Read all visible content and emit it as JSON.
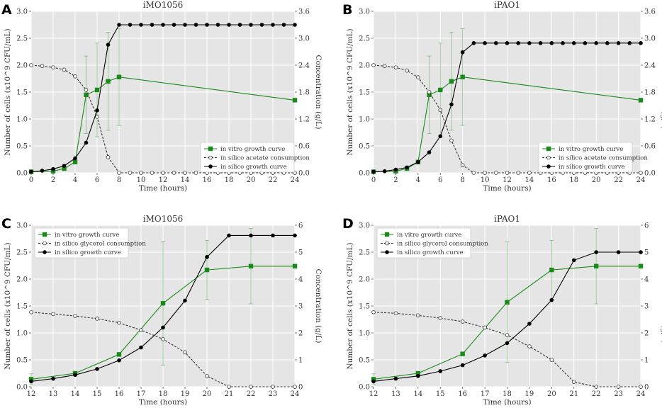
{
  "colors": {
    "vitro": "#1a8a1a",
    "silico_sub": "#333333",
    "silico_growth": "#000000",
    "background": "#e5e5e5"
  },
  "chart_data": [
    {
      "panel": "A",
      "type": "line",
      "title": "iMO1056",
      "xlabel": "Time (hours)",
      "ylabel": "Number of cells (x10^9 CFU/mL)",
      "y2label": "Concentration (g/L)",
      "xlim": [
        0,
        24
      ],
      "xticks": [
        0,
        2,
        4,
        6,
        8,
        10,
        12,
        14,
        16,
        18,
        20,
        22,
        24
      ],
      "ylim": [
        0,
        3.0
      ],
      "yticks": [
        0.0,
        0.5,
        1.0,
        1.5,
        2.0,
        2.5,
        3.0
      ],
      "y2lim": [
        0,
        3.6
      ],
      "y2ticks": [
        0.0,
        0.6,
        1.2,
        1.8,
        2.4,
        3.0,
        3.6
      ],
      "legend_pos": "bottom-right",
      "series": [
        {
          "name": "in vitro growth curve",
          "style": "vitro",
          "x": [
            0,
            2,
            3,
            4,
            5,
            6,
            7,
            8,
            24
          ],
          "y": [
            0.02,
            0.03,
            0.08,
            0.2,
            1.45,
            1.54,
            1.7,
            1.78,
            1.35
          ],
          "err": [
            0,
            0,
            0,
            0,
            0.72,
            0.87,
            0.91,
            0.9,
            0
          ]
        },
        {
          "name": "in silico acetate consumption",
          "style": "sub",
          "axis": "y2",
          "x": [
            0,
            1,
            2,
            3,
            4,
            5,
            6,
            7,
            8,
            9,
            10,
            11,
            12,
            13,
            14,
            15,
            16,
            17,
            18,
            19,
            20,
            21,
            22,
            23,
            24
          ],
          "y": [
            2.4,
            2.38,
            2.35,
            2.3,
            2.15,
            1.85,
            1.25,
            0.35,
            0,
            0,
            0,
            0,
            0,
            0,
            0,
            0,
            0,
            0,
            0,
            0,
            0,
            0,
            0,
            0,
            0
          ]
        },
        {
          "name": "in silico growth curve",
          "style": "growth",
          "x": [
            0,
            1,
            2,
            3,
            4,
            5,
            6,
            7,
            8,
            9,
            10,
            11,
            12,
            13,
            14,
            15,
            16,
            17,
            18,
            19,
            20,
            21,
            22,
            23,
            24
          ],
          "y": [
            0.02,
            0.04,
            0.07,
            0.13,
            0.27,
            0.56,
            1.16,
            2.38,
            2.75,
            2.75,
            2.75,
            2.75,
            2.75,
            2.75,
            2.75,
            2.75,
            2.75,
            2.75,
            2.75,
            2.75,
            2.75,
            2.75,
            2.75,
            2.75,
            2.75
          ]
        }
      ]
    },
    {
      "panel": "B",
      "type": "line",
      "title": "iPAO1",
      "xlabel": "Time (hours)",
      "ylabel": "Number of cells (x10^9 CFU/mL)",
      "y2label": "Concentration (g/L)",
      "xlim": [
        0,
        24
      ],
      "xticks": [
        0,
        2,
        4,
        6,
        8,
        10,
        12,
        14,
        16,
        18,
        20,
        22,
        24
      ],
      "ylim": [
        0,
        3.0
      ],
      "yticks": [
        0.0,
        0.5,
        1.0,
        1.5,
        2.0,
        2.5,
        3.0
      ],
      "y2lim": [
        0,
        3.6
      ],
      "y2ticks": [
        0.0,
        0.6,
        1.2,
        1.8,
        2.4,
        3.0,
        3.6
      ],
      "legend_pos": "bottom-right",
      "series": [
        {
          "name": "in vitro growth curve",
          "style": "vitro",
          "x": [
            0,
            2,
            3,
            4,
            5,
            6,
            7,
            8,
            24
          ],
          "y": [
            0.02,
            0.03,
            0.08,
            0.2,
            1.45,
            1.54,
            1.7,
            1.78,
            1.35
          ],
          "err": [
            0,
            0,
            0,
            0,
            0.72,
            0.87,
            0.91,
            0.9,
            0
          ]
        },
        {
          "name": "in silico acetate consumption",
          "style": "sub",
          "axis": "y2",
          "x": [
            0,
            1,
            2,
            3,
            4,
            5,
            6,
            7,
            8,
            9,
            10,
            11,
            12,
            13,
            14,
            15,
            16,
            17,
            18,
            19,
            20,
            21,
            22,
            23,
            24
          ],
          "y": [
            2.4,
            2.38,
            2.35,
            2.28,
            2.13,
            1.8,
            1.4,
            0.72,
            0.17,
            0,
            0,
            0,
            0,
            0,
            0,
            0,
            0,
            0,
            0,
            0,
            0,
            0,
            0,
            0,
            0
          ]
        },
        {
          "name": "in silico growth curve",
          "style": "growth",
          "x": [
            0,
            1,
            2,
            3,
            4,
            5,
            6,
            7,
            8,
            9,
            10,
            11,
            12,
            13,
            14,
            15,
            16,
            17,
            18,
            19,
            20,
            21,
            22,
            23,
            24
          ],
          "y": [
            0.02,
            0.03,
            0.06,
            0.1,
            0.2,
            0.38,
            0.68,
            1.27,
            2.24,
            2.41,
            2.41,
            2.41,
            2.41,
            2.41,
            2.41,
            2.41,
            2.41,
            2.41,
            2.41,
            2.41,
            2.41,
            2.41,
            2.41,
            2.41,
            2.41
          ]
        }
      ]
    },
    {
      "panel": "C",
      "type": "line",
      "title": "iMO1056",
      "xlabel": "Time (hours)",
      "ylabel": "Number of cells (x10^9 CFU/mL)",
      "y2label": "Concentration (g/L)",
      "xlim": [
        12,
        24
      ],
      "xticks": [
        12,
        13,
        14,
        15,
        16,
        17,
        18,
        19,
        20,
        21,
        22,
        23,
        24
      ],
      "ylim": [
        0,
        3.0
      ],
      "yticks": [
        0.0,
        0.5,
        1.0,
        1.5,
        2.0,
        2.5,
        3.0
      ],
      "y2lim": [
        0,
        6
      ],
      "y2ticks": [
        0,
        1,
        2,
        3,
        4,
        5,
        6
      ],
      "legend_pos": "top-left",
      "series": [
        {
          "name": "in vitro growth curve",
          "style": "vitro",
          "x": [
            12,
            14,
            16,
            18,
            20,
            22,
            24
          ],
          "y": [
            0.14,
            0.25,
            0.6,
            1.55,
            2.17,
            2.24,
            2.24
          ],
          "err": [
            0.1,
            0,
            0,
            1.15,
            0.55,
            0.7,
            0
          ]
        },
        {
          "name": "in silico glycerol consumption",
          "style": "sub",
          "axis": "y2",
          "x": [
            12,
            13,
            14,
            15,
            16,
            17,
            18,
            19,
            20,
            21,
            22,
            23,
            24
          ],
          "y": [
            2.77,
            2.7,
            2.63,
            2.53,
            2.38,
            2.1,
            1.77,
            1.28,
            0.4,
            0,
            0,
            0,
            0
          ]
        },
        {
          "name": "in silico growth curve",
          "style": "growth",
          "x": [
            12,
            13,
            14,
            15,
            16,
            17,
            18,
            19,
            20,
            21,
            22,
            23,
            24
          ],
          "y": [
            0.1,
            0.15,
            0.22,
            0.33,
            0.49,
            0.73,
            1.1,
            1.6,
            2.41,
            2.81,
            2.81,
            2.81,
            2.81
          ]
        }
      ]
    },
    {
      "panel": "D",
      "type": "line",
      "title": "iPAO1",
      "xlabel": "Time (hours)",
      "ylabel": "Number of cells (x10^9 CFU/mL)",
      "y2label": "Concentration (g/L)",
      "xlim": [
        12,
        24
      ],
      "xticks": [
        12,
        13,
        14,
        15,
        16,
        17,
        18,
        19,
        20,
        21,
        22,
        23,
        24
      ],
      "ylim": [
        0,
        3.0
      ],
      "yticks": [
        0.0,
        0.5,
        1.0,
        1.5,
        2.0,
        2.5,
        3.0
      ],
      "y2lim": [
        0,
        6
      ],
      "y2ticks": [
        0,
        1,
        2,
        3,
        4,
        5,
        6
      ],
      "legend_pos": "top-left",
      "series": [
        {
          "name": "in vitro growth curve",
          "style": "vitro",
          "x": [
            12,
            14,
            16,
            18,
            20,
            22,
            24
          ],
          "y": [
            0.14,
            0.25,
            0.61,
            1.57,
            2.17,
            2.24,
            2.24
          ],
          "err": [
            0.1,
            0,
            0,
            1.12,
            0.55,
            0.7,
            0
          ]
        },
        {
          "name": "in silico glycerol consumption",
          "style": "sub",
          "axis": "y2",
          "x": [
            12,
            13,
            14,
            15,
            16,
            17,
            18,
            19,
            20,
            21,
            22,
            23,
            24
          ],
          "y": [
            2.77,
            2.73,
            2.65,
            2.55,
            2.42,
            2.2,
            1.92,
            1.5,
            1.0,
            0.18,
            0,
            0,
            0
          ]
        },
        {
          "name": "in silico growth curve",
          "style": "growth",
          "x": [
            12,
            13,
            14,
            15,
            16,
            17,
            18,
            19,
            20,
            21,
            22,
            23,
            24
          ],
          "y": [
            0.1,
            0.15,
            0.2,
            0.29,
            0.4,
            0.58,
            0.81,
            1.17,
            1.61,
            2.35,
            2.5,
            2.5,
            2.5
          ]
        }
      ]
    }
  ]
}
